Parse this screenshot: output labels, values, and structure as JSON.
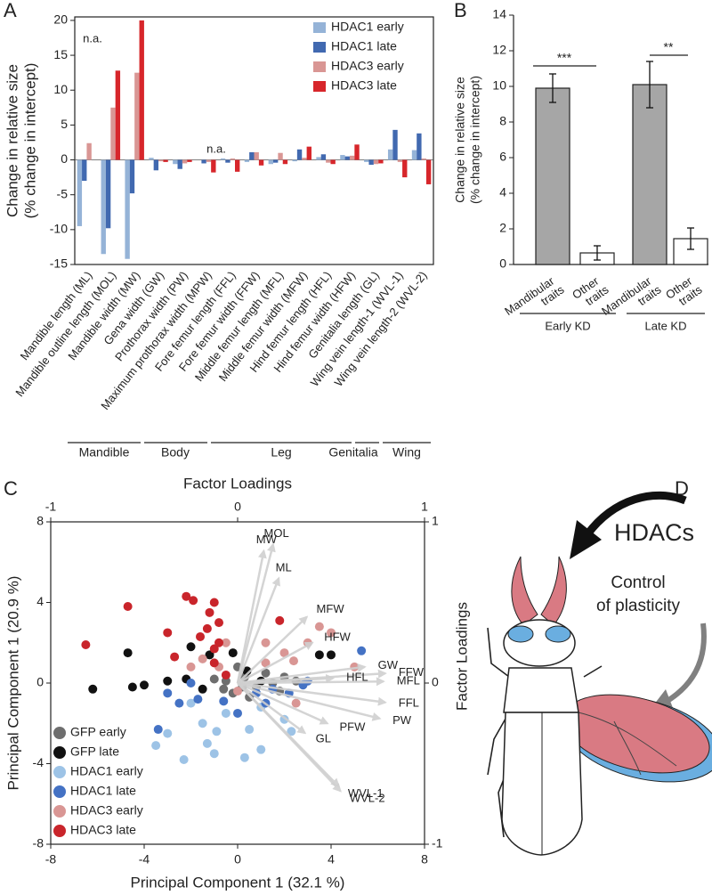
{
  "chart_data": [
    {
      "label": "A",
      "type": "bar",
      "ylabel": [
        "Change in relative size",
        "(% change in intercept)"
      ],
      "categories": [
        "Mandible length (ML)",
        "Mandible outline length (MOL)",
        "Mandible width (MW)",
        "Gena width (GW)",
        "Prothorax width (PW)",
        "Maximum prothorax width (MPW)",
        "Fore femur length (FFL)",
        "Fore femur width (FFW)",
        "Middle femur length (MFL)",
        "Middle femur width (MFW)",
        "Hind femur length (HFL)",
        "Hind femur width (HFW)",
        "Genitalia length (GL)",
        "Wing vein length-1 (WVL-1)",
        "Wing vein length-2 (WVL-2)"
      ],
      "series": [
        {
          "name": "HDAC1 early",
          "color": "#95b3d7",
          "values": [
            -9.5,
            -13.5,
            -14.2,
            0.3,
            -0.6,
            null,
            0.2,
            -0.3,
            -0.6,
            -0.2,
            0.4,
            0.7,
            -0.3,
            1.5,
            1.4
          ]
        },
        {
          "name": "HDAC1 late",
          "color": "#4169b0",
          "values": [
            -3,
            -9.8,
            -4.8,
            -1.5,
            -1.3,
            -0.5,
            -0.4,
            1.1,
            -0.4,
            1.5,
            0.8,
            0.5,
            -0.7,
            4.3,
            3.8
          ]
        },
        {
          "name": "HDAC3 early",
          "color": "#d99694",
          "values": [
            2.4,
            7.5,
            12.5,
            -0.2,
            -0.5,
            -0.3,
            0.2,
            1.1,
            1.0,
            0.3,
            -0.4,
            0.6,
            -0.6,
            -0.3,
            0.2
          ]
        },
        {
          "name": "HDAC3 late",
          "color": "#d7262b",
          "values": [
            null,
            12.8,
            20,
            -0.3,
            -0.3,
            -1.8,
            -1.7,
            -0.8,
            -0.6,
            1.9,
            -0.6,
            2.2,
            -0.5,
            -2.5,
            -3.5
          ]
        }
      ],
      "ylim": [
        -15,
        20.5
      ],
      "yticks": [
        -15,
        -10,
        -5,
        0,
        5,
        10,
        15,
        20
      ],
      "legend": "upper right",
      "annotations": [
        "n.a.",
        "n.a."
      ],
      "groups": [
        "Mandible",
        "Body",
        "Leg",
        "Genitalia",
        "Wing"
      ]
    },
    {
      "label": "B",
      "type": "bar",
      "ylabel": [
        "Change in relative size",
        "(% change in intercept)"
      ],
      "categories": [
        "Mandibular traits",
        "Other traits",
        "Mandibular traits",
        "Other traits"
      ],
      "values": [
        9.9,
        0.65,
        10.1,
        1.45
      ],
      "errors": [
        0.8,
        0.4,
        1.3,
        0.6
      ],
      "colors": [
        "#a6a6a6",
        "#ffffff",
        "#a6a6a6",
        "#ffffff"
      ],
      "ylim": [
        0,
        14
      ],
      "yticks": [
        0,
        2,
        4,
        6,
        8,
        10,
        12,
        14
      ],
      "groups": [
        "Early KD",
        "Late KD"
      ],
      "significance": [
        "***",
        "**"
      ]
    },
    {
      "label": "C",
      "type": "scatter",
      "title": "Factor Loadings",
      "xlabel": "Principal Component 1 (32.1 %)",
      "ylabel": "Principal Component 1 (20.9 %)",
      "y2label": "Factor Loadings",
      "xlim": [
        -8,
        8
      ],
      "ylim": [
        -8,
        8
      ],
      "xticks": [
        -8,
        -4,
        0,
        4,
        8
      ],
      "yticks": [
        -8,
        -4,
        0,
        4,
        8
      ],
      "x2lim": [
        -1,
        1
      ],
      "x2ticks": [
        -1,
        0,
        1
      ],
      "y2lim": [
        -1,
        1
      ],
      "y2ticks": [
        -1,
        0,
        1
      ],
      "legend": "lower left",
      "series": [
        {
          "name": "GFP early",
          "color": "#6e6e6e",
          "x": [
            -0.5,
            0.3,
            0.8,
            1.2,
            -0.2,
            0.5,
            1.5,
            2.0,
            -1.0,
            0.0,
            1.8,
            2.5,
            0.2,
            -0.6
          ],
          "y": [
            0.1,
            0.3,
            -0.2,
            0.5,
            -0.5,
            -0.7,
            0,
            0.3,
            0.2,
            0.8,
            -0.4,
            0.1,
            -0.2,
            -0.3
          ]
        },
        {
          "name": "GFP late",
          "color": "#111111",
          "x": [
            -6.2,
            -4.5,
            -4.0,
            -3.0,
            -2.2,
            -1.2,
            -2.0,
            -0.2,
            0.4,
            -4.7,
            3.5,
            4.0,
            -1.5,
            1.0
          ],
          "y": [
            -0.3,
            -0.2,
            -0.1,
            0.1,
            0.2,
            1.4,
            1.8,
            1.5,
            0.6,
            1.5,
            1.4,
            1.4,
            -0.3,
            0.1
          ]
        },
        {
          "name": "HDAC1 early",
          "color": "#9dc3e6",
          "x": [
            -3.5,
            -2.3,
            -1.3,
            -3.0,
            -1.0,
            0.3,
            1.0,
            -1.5,
            -0.5,
            0.5,
            2.3,
            -2.0,
            1.0,
            2.0,
            -0.9
          ],
          "y": [
            -3.1,
            -3.8,
            -3.0,
            -2.5,
            -3.5,
            -3.7,
            -3.3,
            -2.0,
            -1.5,
            -2.3,
            -2.4,
            -1.0,
            -1.2,
            -1.8,
            -2.4
          ]
        },
        {
          "name": "HDAC1 late",
          "color": "#4472c4",
          "x": [
            -3.4,
            -2.5,
            -1.7,
            -0.6,
            0.8,
            1.5,
            2.2,
            2.8,
            -2.0,
            5.3,
            -3.0,
            0.0,
            3.0,
            1.2
          ],
          "y": [
            -2.3,
            -1.0,
            -0.8,
            -0.9,
            -0.5,
            -0.3,
            -0.5,
            -0.1,
            0.0,
            1.6,
            -0.5,
            -1.5,
            0.1,
            -1.0
          ]
        },
        {
          "name": "HDAC3 early",
          "color": "#d99694",
          "x": [
            -1.5,
            -0.5,
            1.2,
            2.0,
            2.4,
            3.0,
            3.5,
            4.0,
            -2.0,
            1.2,
            5.0,
            0.0,
            2.5,
            -0.8
          ],
          "y": [
            1.2,
            2.0,
            2.0,
            1.5,
            1.1,
            2.0,
            2.8,
            2.5,
            0.8,
            1.0,
            0.8,
            -0.4,
            -1.0,
            0.8
          ]
        },
        {
          "name": "HDAC3 late",
          "color": "#c9252b",
          "x": [
            -6.5,
            -4.7,
            -2.2,
            -1.9,
            -1.0,
            -1.2,
            -0.8,
            -1.6,
            -1.0,
            -3.0,
            -2.7,
            -1.3,
            -0.8,
            1.8,
            -1.0,
            -0.5
          ],
          "y": [
            1.9,
            3.8,
            4.3,
            4.1,
            4.0,
            3.5,
            3.0,
            2.3,
            1.7,
            2.5,
            1.3,
            2.7,
            2.0,
            3.1,
            1.0,
            0.4
          ]
        }
      ],
      "loadings": {
        "color": "#d0d0d0",
        "names": [
          "MW",
          "MOL",
          "ML",
          "MFW",
          "HFW",
          "GW",
          "FFW",
          "MFL",
          "HFL",
          "FFL",
          "PW",
          "PFW",
          "GL",
          "WVL-2",
          "WVL-1"
        ],
        "x": [
          0.14,
          0.19,
          0.22,
          0.37,
          0.4,
          0.68,
          0.79,
          0.78,
          0.51,
          0.79,
          0.76,
          0.48,
          0.36,
          0.55,
          0.54
        ],
        "y": [
          0.82,
          0.86,
          0.65,
          0.41,
          0.25,
          0.1,
          0.06,
          0.01,
          0.03,
          -0.12,
          -0.22,
          -0.25,
          -0.31,
          -0.67,
          -0.64
        ]
      }
    }
  ],
  "diagram": {
    "label": "D",
    "agent": "HDACs",
    "arrow_label": [
      "Control",
      "of plasticity"
    ]
  }
}
